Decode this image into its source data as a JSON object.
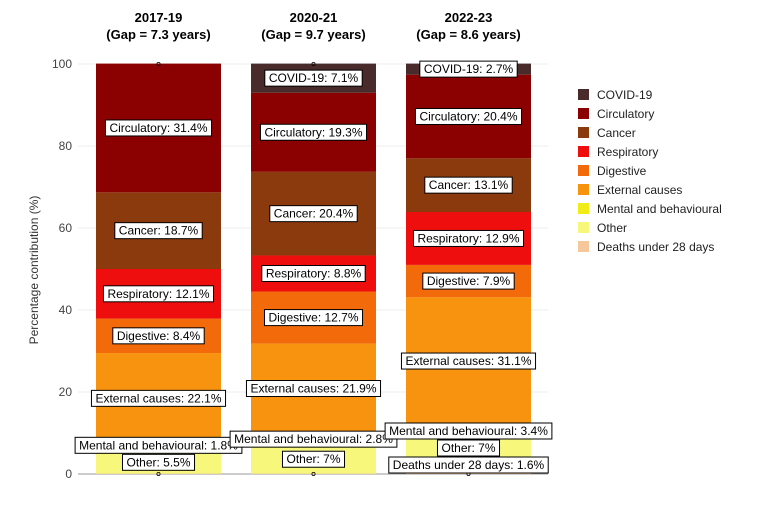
{
  "chart_data": {
    "type": "bar",
    "stacked": true,
    "ylabel": "Percentage contribution (%)",
    "ylim": [
      0,
      100
    ],
    "yticks": [
      0,
      20,
      40,
      60,
      80,
      100
    ],
    "grid": true,
    "legend_position": "right",
    "categories": [
      "Deaths under 28 days",
      "Other",
      "Mental and behavioural",
      "External causes",
      "Digestive",
      "Respiratory",
      "Cancer",
      "Circulatory",
      "COVID-19"
    ],
    "colors": {
      "COVID-19": "#4a2b2b",
      "Circulatory": "#8b0000",
      "Cancer": "#8b3a0e",
      "Respiratory": "#ee0e0e",
      "Digestive": "#f26a0a",
      "External causes": "#f7930f",
      "Mental and behavioural": "#f2ec16",
      "Other": "#f7f77c",
      "Deaths under 28 days": "#f6c79a"
    },
    "legend": [
      "COVID-19",
      "Circulatory",
      "Cancer",
      "Respiratory",
      "Digestive",
      "External causes",
      "Mental and behavioural",
      "Other",
      "Deaths under 28 days"
    ],
    "panels": [
      {
        "title": "2017-19",
        "subtitle": "(Gap = 7.3 years)",
        "segments": [
          {
            "category": "Deaths under 28 days",
            "value": 0.1,
            "label": ""
          },
          {
            "category": "Other",
            "value": 5.5,
            "label": "Other: 5.5%"
          },
          {
            "category": "Mental and behavioural",
            "value": 1.8,
            "label": "Mental and behavioural: 1.8%"
          },
          {
            "category": "External causes",
            "value": 22.1,
            "label": "External causes: 22.1%"
          },
          {
            "category": "Digestive",
            "value": 8.4,
            "label": "Digestive: 8.4%"
          },
          {
            "category": "Respiratory",
            "value": 12.1,
            "label": "Respiratory: 12.1%"
          },
          {
            "category": "Cancer",
            "value": 18.7,
            "label": "Cancer: 18.7%"
          },
          {
            "category": "Circulatory",
            "value": 31.4,
            "label": "Circulatory: 31.4%"
          }
        ]
      },
      {
        "title": "2020-21",
        "subtitle": "(Gap = 9.7 years)",
        "segments": [
          {
            "category": "Deaths under 28 days",
            "value": 0.1,
            "label": ""
          },
          {
            "category": "Other",
            "value": 7,
            "label": "Other: 7%"
          },
          {
            "category": "Mental and behavioural",
            "value": 2.8,
            "label": "Mental and behavioural: 2.8%"
          },
          {
            "category": "External causes",
            "value": 21.9,
            "label": "External causes: 21.9%"
          },
          {
            "category": "Digestive",
            "value": 12.7,
            "label": "Digestive: 12.7%"
          },
          {
            "category": "Respiratory",
            "value": 8.8,
            "label": "Respiratory: 8.8%"
          },
          {
            "category": "Cancer",
            "value": 20.4,
            "label": "Cancer: 20.4%"
          },
          {
            "category": "Circulatory",
            "value": 19.3,
            "label": "Circulatory: 19.3%"
          },
          {
            "category": "COVID-19",
            "value": 7.1,
            "label": "COVID-19: 7.1%"
          }
        ]
      },
      {
        "title": "2022-23",
        "subtitle": "(Gap = 8.6 years)",
        "segments": [
          {
            "category": "Deaths under 28 days",
            "value": 1.6,
            "label": "Deaths under 28 days: 1.6%"
          },
          {
            "category": "Other",
            "value": 7,
            "label": "Other: 7%"
          },
          {
            "category": "Mental and behavioural",
            "value": 3.4,
            "label": "Mental and behavioural: 3.4%"
          },
          {
            "category": "External causes",
            "value": 31.1,
            "label": "External causes: 31.1%"
          },
          {
            "category": "Digestive",
            "value": 7.9,
            "label": "Digestive: 7.9%"
          },
          {
            "category": "Respiratory",
            "value": 12.9,
            "label": "Respiratory: 12.9%"
          },
          {
            "category": "Cancer",
            "value": 13.1,
            "label": "Cancer: 13.1%"
          },
          {
            "category": "Circulatory",
            "value": 20.4,
            "label": "Circulatory: 20.4%"
          },
          {
            "category": "COVID-19",
            "value": 2.7,
            "label": "COVID-19: 2.7%"
          }
        ]
      }
    ]
  }
}
